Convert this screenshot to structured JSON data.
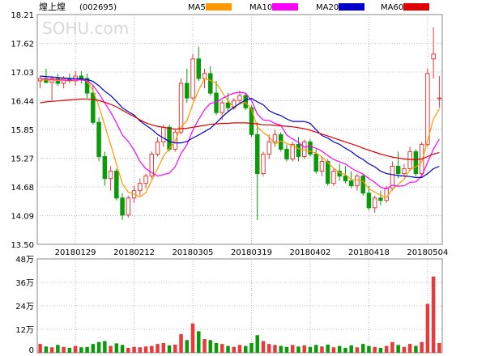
{
  "stock": {
    "name": "煌上煌",
    "code": "(002695)"
  },
  "watermark": "SOHU.com",
  "legend": [
    {
      "label": "MA5",
      "color": "#FF9900"
    },
    {
      "label": "MA10",
      "color": "#FF00FF"
    },
    {
      "label": "MA20",
      "color": "#0000CC"
    },
    {
      "label": "MA60",
      "color": "#E00000"
    }
  ],
  "colors": {
    "up": "#E83A3A",
    "down": "#0A9A0A",
    "axis": "#888888",
    "grid": "#BBBBBB"
  },
  "chart_data": [
    {
      "type": "candlestick",
      "title": "",
      "ylim": [
        13.5,
        18.21
      ],
      "y_ticks": [
        "18.21",
        "17.62",
        "17.03",
        "16.44",
        "15.85",
        "15.27",
        "14.68",
        "14.09",
        "13.50"
      ],
      "x_tick_labels": [
        {
          "index": 6,
          "label": "20180129"
        },
        {
          "index": 16,
          "label": "20180212"
        },
        {
          "index": 26,
          "label": "20180305"
        },
        {
          "index": 36,
          "label": "20180319"
        },
        {
          "index": 46,
          "label": "20180402"
        },
        {
          "index": 56,
          "label": "20180418"
        },
        {
          "index": 66,
          "label": "20180504"
        }
      ],
      "ohlc": [
        [
          16.85,
          16.95,
          16.7,
          16.9
        ],
        [
          16.9,
          17.1,
          16.8,
          16.82
        ],
        [
          16.82,
          16.95,
          16.45,
          16.9
        ],
        [
          16.9,
          17.0,
          16.75,
          16.8
        ],
        [
          16.8,
          16.95,
          16.7,
          16.9
        ],
        [
          16.9,
          17.0,
          16.8,
          16.85
        ],
        [
          16.85,
          17.05,
          16.75,
          16.95
        ],
        [
          16.95,
          17.05,
          16.8,
          16.9
        ],
        [
          16.9,
          17.0,
          16.5,
          16.6
        ],
        [
          16.6,
          16.75,
          15.95,
          16.0
        ],
        [
          16.0,
          16.1,
          15.2,
          15.3
        ],
        [
          15.3,
          15.4,
          14.7,
          14.85
        ],
        [
          14.85,
          15.1,
          14.6,
          15.0
        ],
        [
          15.0,
          15.05,
          14.4,
          14.45
        ],
        [
          14.45,
          14.55,
          14.0,
          14.1
        ],
        [
          14.1,
          14.5,
          14.05,
          14.45
        ],
        [
          14.45,
          14.7,
          14.35,
          14.6
        ],
        [
          14.6,
          14.85,
          14.5,
          14.75
        ],
        [
          14.75,
          14.95,
          14.65,
          14.9
        ],
        [
          14.9,
          15.4,
          14.85,
          15.35
        ],
        [
          15.35,
          15.7,
          15.3,
          15.6
        ],
        [
          15.6,
          15.95,
          15.5,
          15.9
        ],
        [
          15.9,
          15.95,
          15.4,
          15.45
        ],
        [
          15.45,
          15.85,
          15.4,
          15.8
        ],
        [
          15.8,
          16.9,
          15.75,
          16.8
        ],
        [
          16.8,
          17.1,
          16.4,
          16.5
        ],
        [
          16.5,
          17.4,
          16.45,
          17.3
        ],
        [
          17.3,
          17.55,
          16.85,
          16.9
        ],
        [
          16.9,
          17.1,
          16.7,
          17.0
        ],
        [
          17.0,
          17.15,
          16.55,
          16.6
        ],
        [
          16.6,
          16.85,
          16.15,
          16.2
        ],
        [
          16.2,
          16.45,
          16.05,
          16.4
        ],
        [
          16.4,
          16.6,
          16.2,
          16.3
        ],
        [
          16.3,
          16.5,
          16.25,
          16.45
        ],
        [
          16.45,
          16.65,
          16.4,
          16.55
        ],
        [
          16.55,
          16.6,
          16.25,
          16.3
        ],
        [
          16.3,
          16.35,
          15.7,
          15.75
        ],
        [
          15.75,
          16.0,
          14.0,
          14.95
        ],
        [
          14.95,
          15.4,
          14.9,
          15.35
        ],
        [
          15.35,
          15.75,
          15.25,
          15.6
        ],
        [
          15.6,
          15.85,
          15.5,
          15.75
        ],
        [
          15.75,
          15.8,
          15.4,
          15.45
        ],
        [
          15.45,
          15.55,
          15.2,
          15.25
        ],
        [
          15.25,
          15.6,
          15.2,
          15.55
        ],
        [
          15.55,
          15.7,
          15.2,
          15.3
        ],
        [
          15.3,
          15.65,
          15.25,
          15.6
        ],
        [
          15.6,
          15.65,
          15.3,
          15.35
        ],
        [
          15.35,
          15.45,
          14.95,
          15.0
        ],
        [
          15.0,
          15.3,
          14.9,
          15.2
        ],
        [
          15.2,
          15.25,
          14.7,
          14.75
        ],
        [
          14.75,
          15.05,
          14.7,
          15.0
        ],
        [
          15.0,
          15.15,
          14.8,
          14.9
        ],
        [
          14.9,
          15.1,
          14.75,
          14.8
        ],
        [
          14.8,
          15.0,
          14.65,
          14.7
        ],
        [
          14.7,
          14.95,
          14.6,
          14.9
        ],
        [
          14.9,
          14.95,
          14.5,
          14.55
        ],
        [
          14.55,
          14.7,
          14.2,
          14.25
        ],
        [
          14.25,
          14.5,
          14.15,
          14.45
        ],
        [
          14.45,
          14.6,
          14.3,
          14.4
        ],
        [
          14.4,
          14.7,
          14.35,
          14.65
        ],
        [
          14.65,
          15.2,
          14.6,
          15.1
        ],
        [
          15.1,
          15.4,
          14.85,
          14.95
        ],
        [
          14.95,
          15.15,
          14.9,
          15.05
        ],
        [
          15.05,
          15.5,
          15.0,
          15.4
        ],
        [
          15.4,
          15.45,
          14.9,
          14.95
        ],
        [
          14.95,
          15.6,
          14.9,
          15.55
        ],
        [
          15.55,
          17.1,
          15.5,
          17.0
        ],
        [
          17.3,
          17.95,
          16.9,
          17.4
        ],
        [
          16.5,
          16.95,
          16.3,
          16.5
        ]
      ],
      "ma5": [
        16.87,
        16.87,
        16.87,
        16.86,
        16.86,
        16.85,
        16.86,
        16.88,
        16.84,
        16.65,
        16.33,
        15.94,
        15.55,
        15.14,
        14.74,
        14.57,
        14.53,
        14.47,
        14.56,
        14.81,
        15.05,
        15.31,
        15.46,
        15.62,
        15.91,
        16.03,
        16.37,
        16.66,
        16.9,
        16.86,
        16.8,
        16.62,
        16.44,
        16.31,
        16.38,
        16.41,
        16.27,
        15.91,
        15.79,
        15.71,
        15.55,
        15.62,
        15.57,
        15.52,
        15.46,
        15.43,
        15.41,
        15.37,
        15.29,
        15.18,
        15.06,
        14.97,
        14.93,
        14.83,
        14.82,
        14.79,
        14.64,
        14.57,
        14.51,
        14.46,
        14.63,
        14.73,
        14.84,
        15.03,
        15.09,
        15.18,
        15.63,
        16.07,
        16.28
      ],
      "ma10": [
        16.9,
        16.89,
        16.88,
        16.88,
        16.87,
        16.86,
        16.87,
        16.87,
        16.85,
        16.76,
        16.59,
        16.4,
        16.21,
        15.99,
        15.74,
        15.61,
        15.43,
        15.2,
        15.05,
        14.97,
        14.9,
        14.93,
        14.96,
        15.09,
        15.36,
        15.54,
        15.84,
        16.06,
        16.26,
        16.39,
        16.41,
        16.49,
        16.55,
        16.6,
        16.62,
        16.6,
        16.45,
        16.17,
        16.05,
        16.04,
        15.98,
        15.94,
        15.74,
        15.66,
        15.59,
        15.49,
        15.51,
        15.47,
        15.41,
        15.32,
        15.24,
        15.19,
        15.15,
        15.06,
        15.0,
        14.94,
        14.85,
        14.77,
        14.67,
        14.64,
        14.71,
        14.69,
        14.7,
        14.77,
        14.78,
        14.9,
        15.18,
        15.45,
        15.66
      ],
      "ma20": [
        16.95,
        16.94,
        16.93,
        16.92,
        16.91,
        16.9,
        16.9,
        16.89,
        16.88,
        16.84,
        16.75,
        16.64,
        16.55,
        16.43,
        16.3,
        16.22,
        16.15,
        16.03,
        15.94,
        15.86,
        15.75,
        15.68,
        15.61,
        15.58,
        15.58,
        15.61,
        15.68,
        15.74,
        15.81,
        15.88,
        15.99,
        16.11,
        16.22,
        16.31,
        16.39,
        16.46,
        16.49,
        16.42,
        16.36,
        16.24,
        16.18,
        16.14,
        16.07,
        16.02,
        16.02,
        16.02,
        15.98,
        15.85,
        15.73,
        15.68,
        15.6,
        15.55,
        15.47,
        15.4,
        15.31,
        15.24,
        15.15,
        15.09,
        15.0,
        14.95,
        14.93,
        14.91,
        14.9,
        14.89,
        14.87,
        14.87,
        14.95,
        15.05,
        15.1
      ],
      "ma60": [
        16.4,
        16.42,
        16.43,
        16.44,
        16.45,
        16.46,
        16.47,
        16.48,
        16.48,
        16.47,
        16.45,
        16.41,
        16.37,
        16.32,
        16.25,
        16.18,
        16.12,
        16.05,
        15.99,
        15.95,
        15.92,
        15.9,
        15.88,
        15.86,
        15.87,
        15.88,
        15.9,
        15.92,
        15.94,
        15.96,
        15.97,
        15.98,
        15.98,
        15.99,
        15.99,
        15.99,
        15.98,
        15.97,
        15.95,
        15.95,
        15.94,
        15.93,
        15.92,
        15.91,
        15.89,
        15.87,
        15.84,
        15.8,
        15.76,
        15.72,
        15.68,
        15.64,
        15.6,
        15.56,
        15.52,
        15.47,
        15.43,
        15.39,
        15.35,
        15.32,
        15.29,
        15.27,
        15.25,
        15.24,
        15.24,
        15.25,
        15.3,
        15.35,
        15.38
      ]
    },
    {
      "type": "bar",
      "title": "",
      "unit": "万",
      "ylim": [
        0,
        48
      ],
      "y_ticks": [
        "48万",
        "36万",
        "24万",
        "12万",
        "0"
      ],
      "volume": [
        4.5,
        3.2,
        2.8,
        4.0,
        3.0,
        2.5,
        3.5,
        2.8,
        3.0,
        4.5,
        5.5,
        6.0,
        3.5,
        4.8,
        4.0,
        2.5,
        3.0,
        2.8,
        3.2,
        3.5,
        4.5,
        5.0,
        3.8,
        4.2,
        9.5,
        6.5,
        15.0,
        11.0,
        7.0,
        6.5,
        5.0,
        4.5,
        3.5,
        3.0,
        4.0,
        3.5,
        5.0,
        9.0,
        6.0,
        4.5,
        4.0,
        3.5,
        3.0,
        4.0,
        3.2,
        3.8,
        3.0,
        4.0,
        3.2,
        4.2,
        2.8,
        3.5,
        2.5,
        3.8,
        2.8,
        4.5,
        3.5,
        3.0,
        2.5,
        3.5,
        5.5,
        4.0,
        3.0,
        4.5,
        3.5,
        5.5,
        25.0,
        39.0,
        5.0
      ]
    }
  ]
}
